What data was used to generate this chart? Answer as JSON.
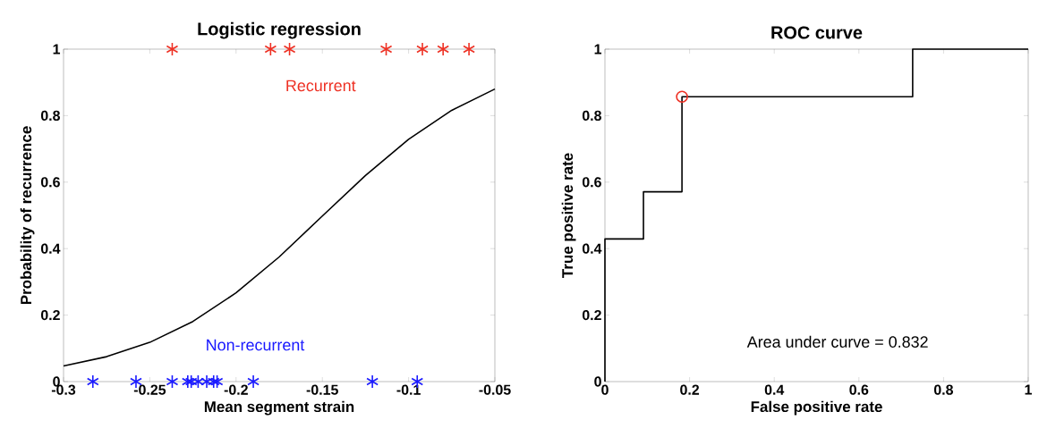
{
  "chart_data": [
    {
      "type": "scatter",
      "title": "Logistic regression",
      "xlabel": "Mean segment strain",
      "ylabel": "Probability of recurrence",
      "xlim": [
        -0.3,
        -0.05
      ],
      "ylim": [
        0,
        1
      ],
      "xticks": [
        -0.3,
        -0.25,
        -0.2,
        -0.15,
        -0.1,
        -0.05
      ],
      "yticks": [
        0,
        0.2,
        0.4,
        0.6,
        0.8,
        1
      ],
      "series": [
        {
          "type": "line",
          "color": "#000000",
          "marker": "none",
          "x": [
            -0.3,
            -0.275,
            -0.25,
            -0.225,
            -0.2,
            -0.175,
            -0.15,
            -0.125,
            -0.1,
            -0.075,
            -0.05
          ],
          "values": [
            0.047,
            0.075,
            0.118,
            0.181,
            0.267,
            0.375,
            0.498,
            0.62,
            0.729,
            0.816,
            0.88
          ]
        },
        {
          "name": "Recurrent",
          "color": "#ee3124",
          "marker": "cross",
          "x": [
            -0.237,
            -0.18,
            -0.169,
            -0.113,
            -0.092,
            -0.08,
            -0.065
          ],
          "values": [
            1,
            1,
            1,
            1,
            1,
            1,
            1
          ]
        },
        {
          "name": "Non-recurrent",
          "color": "#1a1aff",
          "marker": "cross",
          "x": [
            -0.283,
            -0.258,
            -0.237,
            -0.228,
            -0.226,
            -0.222,
            -0.217,
            -0.213,
            -0.211,
            -0.19,
            -0.121,
            -0.095
          ],
          "values": [
            0,
            0,
            0,
            0,
            0,
            0,
            0,
            0,
            0,
            0,
            0,
            0
          ]
        }
      ]
    },
    {
      "type": "step",
      "title": "ROC curve",
      "xlabel": "False positive rate",
      "ylabel": "True positive rate",
      "xlim": [
        0,
        1
      ],
      "ylim": [
        0,
        1
      ],
      "xticks": [
        0,
        0.2,
        0.4,
        0.6,
        0.8,
        1
      ],
      "yticks": [
        0,
        0.2,
        0.4,
        0.6,
        0.8,
        1
      ],
      "annotations": [
        "Area under curve = 0.832"
      ],
      "series": [
        {
          "color": "#000000",
          "marker": "none",
          "x": [
            0,
            0,
            0.091,
            0.182,
            0.727,
            1
          ],
          "values": [
            0,
            0.429,
            0.571,
            0.857,
            1,
            1
          ]
        },
        {
          "type": "scatter",
          "color": "#ee3124",
          "marker": "circle",
          "x": [
            0.182
          ],
          "values": [
            0.857
          ]
        }
      ]
    }
  ]
}
